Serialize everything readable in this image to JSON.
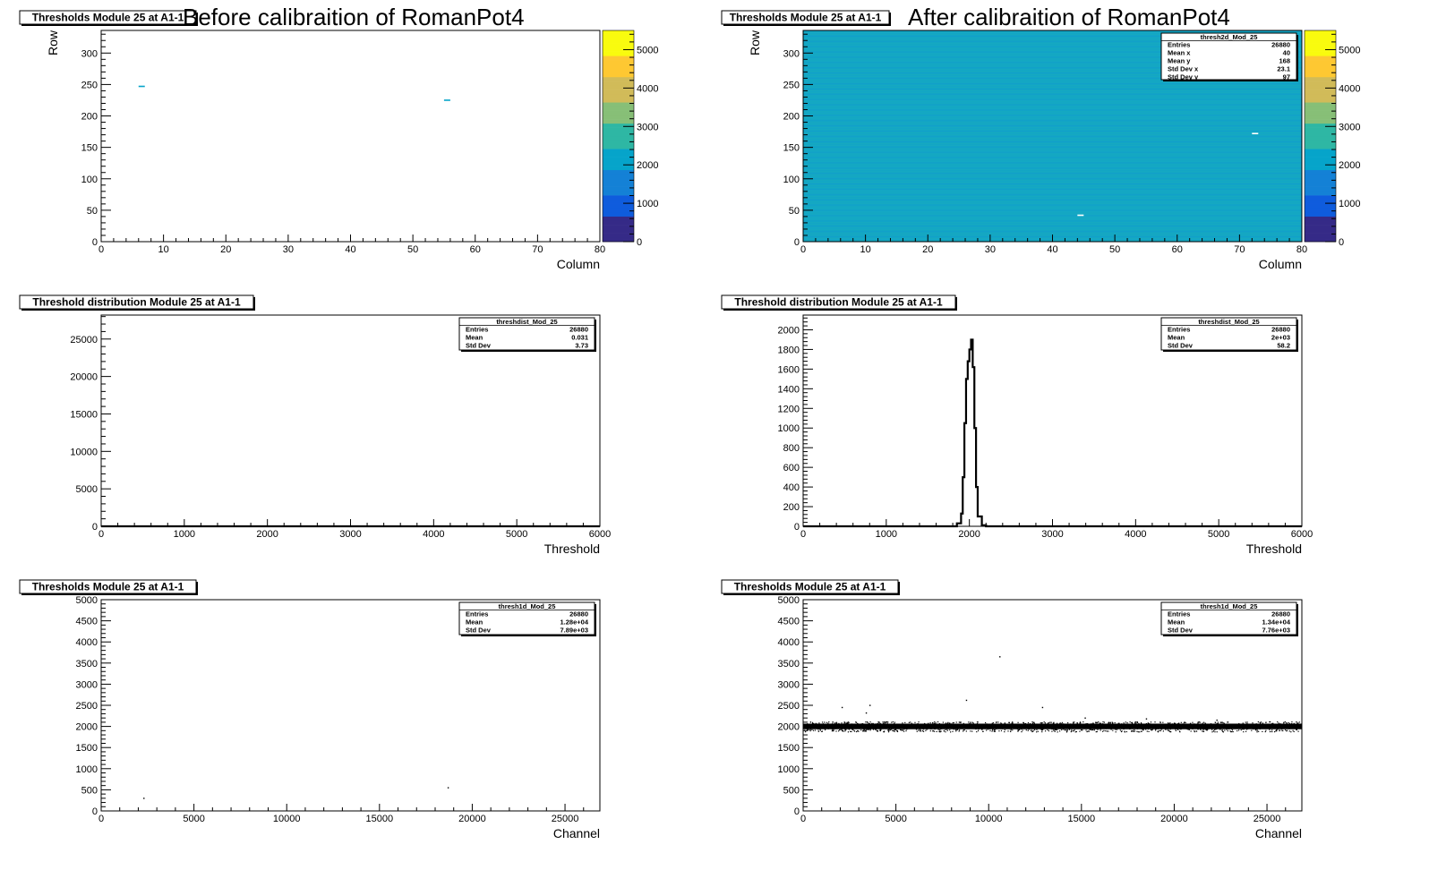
{
  "figure": {
    "left_title": "Before calibraition of RomanPot4",
    "right_title": "After calibraition of RomanPot4"
  },
  "palette": {
    "colz": [
      "#352a87",
      "#0f5cdd",
      "#1481d6",
      "#06a4ca",
      "#2eb7a4",
      "#87bf77",
      "#d1bb59",
      "#fec832",
      "#f9fb0e"
    ],
    "uniform_after": "#12a6c6",
    "frame": "#000000",
    "histogram_line": "#000000"
  },
  "chart_data": [
    {
      "id": "before-thresh2d",
      "type": "heatmap",
      "title": "Thresholds Module 25 at A1-1",
      "xlabel": "Column",
      "ylabel": "Row",
      "xlim": [
        0,
        80
      ],
      "ylim": [
        0,
        336
      ],
      "zlim": [
        0,
        5500
      ],
      "xticks": [
        0,
        10,
        20,
        30,
        40,
        50,
        60,
        70,
        80
      ],
      "yticks": [
        0,
        50,
        100,
        150,
        200,
        250,
        300
      ],
      "zticks": [
        0,
        1000,
        2000,
        3000,
        4000,
        5000
      ],
      "fill": "none",
      "cells": [
        {
          "x": 6.5,
          "y": 247,
          "z": 2200
        },
        {
          "x": 55.5,
          "y": 225,
          "z": 2200
        }
      ],
      "grid": false,
      "colorbar": true,
      "stats": null
    },
    {
      "id": "after-thresh2d",
      "type": "heatmap",
      "title": "Thresholds Module 25 at A1-1",
      "xlabel": "Column",
      "ylabel": "Row",
      "xlim": [
        0,
        80
      ],
      "ylim": [
        0,
        336
      ],
      "zlim": [
        0,
        5500
      ],
      "xticks": [
        0,
        10,
        20,
        30,
        40,
        50,
        60,
        70,
        80
      ],
      "yticks": [
        0,
        50,
        100,
        150,
        200,
        250,
        300
      ],
      "zticks": [
        0,
        1000,
        2000,
        3000,
        4000,
        5000
      ],
      "fill": "uniform",
      "fill_value": 2000,
      "cells": [
        {
          "x": 44.5,
          "y": 42,
          "z": 0
        },
        {
          "x": 72.5,
          "y": 172,
          "z": 0
        }
      ],
      "grid": false,
      "colorbar": true,
      "stats": {
        "name": "thresh2d_Mod_25",
        "rows": [
          [
            "Entries",
            "26880"
          ],
          [
            "Mean x",
            "40"
          ],
          [
            "Mean y",
            "168"
          ],
          [
            "Std Dev x",
            "23.1"
          ],
          [
            "Std Dev y",
            "97"
          ]
        ]
      }
    },
    {
      "id": "before-threshdist",
      "type": "line",
      "title": "Threshold distribution Module 25 at A1-1",
      "xlabel": "Threshold",
      "ylabel": "",
      "xlim": [
        0,
        6000
      ],
      "ylim": [
        0,
        28200
      ],
      "xticks": [
        0,
        1000,
        2000,
        3000,
        4000,
        5000,
        6000
      ],
      "yticks": [
        0,
        5000,
        10000,
        15000,
        20000,
        25000
      ],
      "bins": {
        "x": [
          0,
          6000
        ],
        "y": [
          0,
          0
        ]
      },
      "grid": false,
      "colorbar": false,
      "stats": {
        "name": "threshdist_Mod_25",
        "rows": [
          [
            "Entries",
            "26880"
          ],
          [
            "Mean",
            "0.031"
          ],
          [
            "Std Dev",
            "3.73"
          ]
        ]
      }
    },
    {
      "id": "after-threshdist",
      "type": "line",
      "title": "Threshold distribution Module 25 at A1-1",
      "xlabel": "Threshold",
      "ylabel": "",
      "xlim": [
        0,
        6000
      ],
      "ylim": [
        0,
        2150
      ],
      "xticks": [
        0,
        1000,
        2000,
        3000,
        4000,
        5000,
        6000
      ],
      "yticks": [
        0,
        200,
        400,
        600,
        800,
        1000,
        1200,
        1400,
        1600,
        1800,
        2000
      ],
      "bins": {
        "x": [
          0,
          1800,
          1850,
          1900,
          1920,
          1940,
          1960,
          1980,
          2000,
          2020,
          2040,
          2060,
          2080,
          2100,
          2150,
          2200,
          6000
        ],
        "y": [
          0,
          0,
          30,
          130,
          500,
          1050,
          1500,
          1680,
          1800,
          1900,
          1620,
          1000,
          400,
          100,
          10,
          0,
          0
        ]
      },
      "grid": false,
      "colorbar": false,
      "stats": {
        "name": "threshdist_Mod_25",
        "rows": [
          [
            "Entries",
            "26880"
          ],
          [
            "Mean",
            "2e+03"
          ],
          [
            "Std Dev",
            "58.2"
          ]
        ]
      }
    },
    {
      "id": "before-thresh1d",
      "type": "scatter",
      "title": "Thresholds Module 25 at A1-1",
      "xlabel": "Channel",
      "ylabel": "",
      "xlim": [
        0,
        26880
      ],
      "ylim": [
        0,
        5000
      ],
      "xticks": [
        0,
        5000,
        10000,
        15000,
        20000,
        25000
      ],
      "yticks": [
        0,
        500,
        1000,
        1500,
        2000,
        2500,
        3000,
        3500,
        4000,
        4500,
        5000
      ],
      "points": {
        "x": [
          2300,
          18700
        ],
        "y": [
          300,
          550
        ]
      },
      "band": null,
      "grid": false,
      "colorbar": false,
      "stats": {
        "name": "thresh1d_Mod_25",
        "rows": [
          [
            "Entries",
            "26880"
          ],
          [
            "Mean",
            "1.28e+04"
          ],
          [
            "Std Dev",
            "7.89e+03"
          ]
        ]
      }
    },
    {
      "id": "after-thresh1d",
      "type": "scatter",
      "title": "Thresholds Module 25 at A1-1",
      "xlabel": "Channel",
      "ylabel": "",
      "xlim": [
        0,
        26880
      ],
      "ylim": [
        0,
        5000
      ],
      "xticks": [
        0,
        5000,
        10000,
        15000,
        20000,
        25000
      ],
      "yticks": [
        0,
        500,
        1000,
        1500,
        2000,
        2500,
        3000,
        3500,
        4000,
        4500,
        5000
      ],
      "points": {
        "x": [
          2100,
          3600,
          3400,
          8800,
          10600,
          12900,
          15200,
          18500,
          22300
        ],
        "y": [
          2450,
          2500,
          2320,
          2620,
          3650,
          2450,
          2200,
          2180,
          2150
        ]
      },
      "band": {
        "center": 2000,
        "half_width": 120
      },
      "grid": false,
      "colorbar": false,
      "stats": {
        "name": "thresh1d_Mod_25",
        "rows": [
          [
            "Entries",
            "26880"
          ],
          [
            "Mean",
            "1.34e+04"
          ],
          [
            "Std Dev",
            "7.76e+03"
          ]
        ]
      }
    }
  ]
}
